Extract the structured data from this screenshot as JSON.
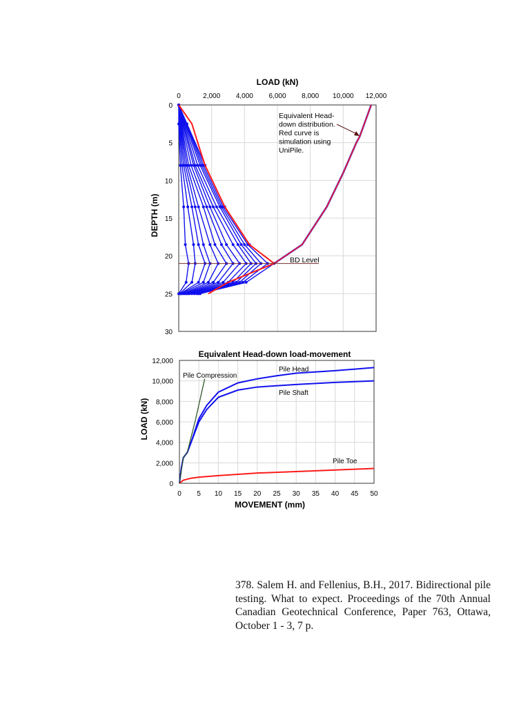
{
  "chart_data": [
    {
      "type": "line",
      "title": "LOAD  (kN)",
      "xlabel": "LOAD  (kN)",
      "ylabel": "DEPTH  (m)",
      "xlim": [
        0,
        12000
      ],
      "ylim": [
        30,
        0
      ],
      "x_axis_position": "top",
      "x_ticks": [
        "0",
        "2,000",
        "4,000",
        "6,000",
        "8,000",
        "10,000",
        "12,000"
      ],
      "y_ticks": [
        "0",
        "5",
        "10",
        "15",
        "20",
        "25",
        "30"
      ],
      "grid": true,
      "annotations": {
        "note": "Equivalent Head-down distribution. Red curve is simulation using UniPile.",
        "bd_level": "BD Level"
      },
      "bd_level_depth": 21,
      "depths": [
        0,
        2.5,
        8,
        13.5,
        18.5,
        21,
        23.5,
        25
      ],
      "series_blue": [
        [
          0,
          0,
          100,
          300,
          400,
          600,
          450,
          0
        ],
        [
          0,
          30,
          200,
          550,
          900,
          1000,
          800,
          50
        ],
        [
          0,
          60,
          300,
          800,
          1200,
          1600,
          1200,
          100
        ],
        [
          0,
          90,
          400,
          1000,
          1500,
          1900,
          1500,
          150
        ],
        [
          0,
          120,
          500,
          1200,
          1900,
          2400,
          1800,
          250
        ],
        [
          0,
          160,
          600,
          1500,
          2200,
          2900,
          2100,
          350
        ],
        [
          0,
          200,
          750,
          1700,
          2600,
          3300,
          2400,
          450
        ],
        [
          0,
          250,
          900,
          1900,
          2900,
          3700,
          2700,
          550
        ],
        [
          0,
          300,
          1000,
          2100,
          3300,
          4100,
          3000,
          650
        ],
        [
          0,
          350,
          1150,
          2300,
          3600,
          4400,
          3300,
          800
        ],
        [
          0,
          400,
          1300,
          2500,
          3800,
          4700,
          3500,
          950
        ],
        [
          0,
          450,
          1400,
          2600,
          4000,
          5000,
          3700,
          1100
        ],
        [
          0,
          480,
          1500,
          2700,
          4200,
          5400,
          3900,
          1200
        ],
        [
          0,
          500,
          1600,
          2800,
          4300,
          5800,
          4100,
          1300
        ]
      ],
      "series_red_left": {
        "x": [
          0,
          800,
          1300,
          1600,
          2800,
          4300,
          5800,
          3000,
          1800
        ],
        "y": [
          0,
          2.5,
          6,
          8,
          13.5,
          18.5,
          21,
          23.5,
          25
        ]
      },
      "series_equiv_head_down": {
        "x": [
          11700,
          11000,
          10800,
          10000,
          9000,
          7500,
          5800
        ],
        "y": [
          0,
          4.2,
          5,
          9,
          13.5,
          18.5,
          21
        ]
      },
      "colors": {
        "blue": "#1010ee",
        "red": "#ff1a1a",
        "bd": "#7a2a2a",
        "grid": "#d8d8d8"
      }
    },
    {
      "type": "line",
      "title": "Equivalent Head-down load-movement",
      "xlabel": "MOVEMENT  (mm)",
      "ylabel": "LOAD  (kN)",
      "xlim": [
        0,
        50
      ],
      "ylim": [
        0,
        12000
      ],
      "x_ticks": [
        "0",
        "5",
        "10",
        "15",
        "20",
        "25",
        "30",
        "35",
        "40",
        "45",
        "50"
      ],
      "y_ticks": [
        "0",
        "2,000",
        "4,000",
        "6,000",
        "8,000",
        "10,000",
        "12,000"
      ],
      "grid": true,
      "series": [
        {
          "name": "Pile Head",
          "color": "#1010ee",
          "x": [
            0,
            0.5,
            1,
            2,
            3,
            5,
            7,
            10,
            15,
            20,
            25,
            30,
            40,
            50
          ],
          "y": [
            0,
            1500,
            2500,
            3000,
            4000,
            6300,
            7600,
            8900,
            9800,
            10200,
            10500,
            10750,
            11000,
            11300
          ]
        },
        {
          "name": "Pile Shaft",
          "color": "#1010ee",
          "x": [
            0,
            0.5,
            1,
            2,
            3,
            5,
            7,
            10,
            15,
            20,
            30,
            40,
            50
          ],
          "y": [
            0,
            1500,
            2500,
            3000,
            4000,
            6000,
            7200,
            8400,
            9100,
            9400,
            9650,
            9850,
            10000
          ]
        },
        {
          "name": "Pile Toe",
          "color": "#ff1a1a",
          "x": [
            0,
            1,
            3,
            5,
            10,
            20,
            30,
            40,
            50
          ],
          "y": [
            0,
            300,
            500,
            600,
            750,
            1000,
            1150,
            1300,
            1450
          ]
        },
        {
          "name": "Pile Compression",
          "color": "#2f5a2a",
          "x": [
            0,
            1,
            2,
            4,
            6.5
          ],
          "y": [
            0,
            2500,
            3000,
            6000,
            10200
          ]
        }
      ]
    }
  ],
  "citation": "378. Salem H. and Fellenius, B.H., 2017. Bidirectional pile testing. What to expect. Proceedings of the 70th Annual Canadian Geotechnical Conference, Paper 763, Ottawa, October 1 - 3, 7 p."
}
